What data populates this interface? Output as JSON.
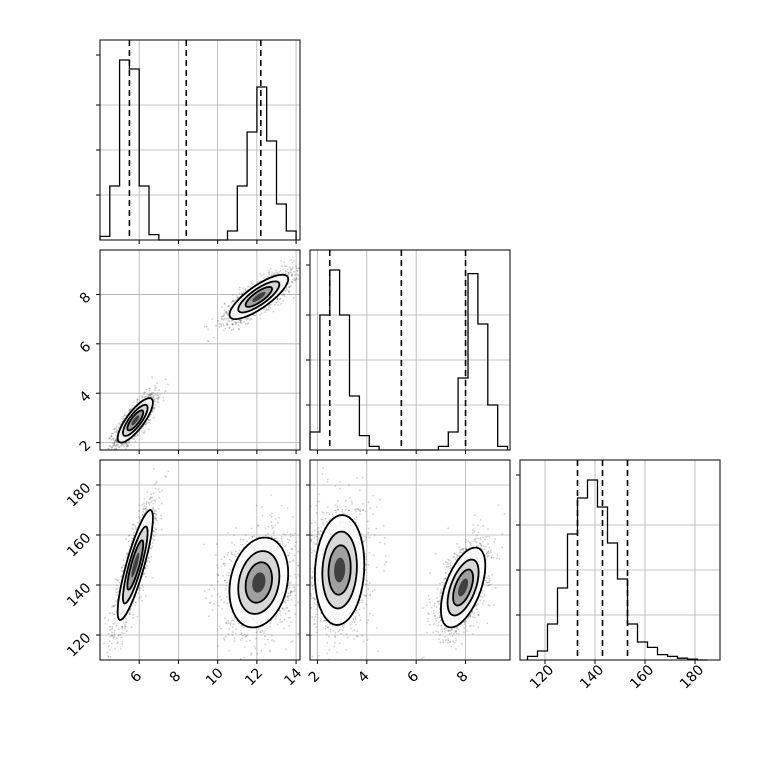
{
  "chart_data": {
    "type": "corner",
    "title": "",
    "colors": {
      "line": "#000000",
      "grid": "#b0b0b0",
      "frame": "#000000",
      "background": "#ffffff"
    },
    "grid": true,
    "parameters": [
      {
        "range": [
          4,
          14.2
        ],
        "tick_labels": [
          "6",
          "8",
          "10",
          "12",
          "14"
        ],
        "tick_values": [
          6,
          8,
          10,
          12,
          14
        ]
      },
      {
        "range": [
          1.7,
          9.8
        ],
        "tick_labels": [
          "2",
          "4",
          "6",
          "8"
        ],
        "tick_values": [
          2,
          4,
          6,
          8
        ]
      },
      {
        "range": [
          110,
          190
        ],
        "tick_labels": [
          "120",
          "140",
          "160",
          "180"
        ],
        "tick_values": [
          120,
          140,
          160,
          180
        ]
      }
    ],
    "histograms": [
      {
        "parameter": 0,
        "bin_edges": [
          4.0,
          4.5,
          5.0,
          5.5,
          6.0,
          6.5,
          7.0,
          7.5,
          8.0,
          8.5,
          9.0,
          9.5,
          10.0,
          10.5,
          11.0,
          11.5,
          12.0,
          12.5,
          13.0,
          13.5,
          14.0
        ],
        "counts": [
          0.02,
          0.3,
          1.0,
          0.95,
          0.3,
          0.03,
          0,
          0,
          0,
          0,
          0,
          0,
          0,
          0.05,
          0.3,
          0.6,
          0.85,
          0.55,
          0.2,
          0.05
        ],
        "quantiles": [
          5.5,
          8.4,
          12.2
        ]
      },
      {
        "parameter": 1,
        "bin_edges": [
          1.7,
          2.1,
          2.5,
          2.9,
          3.3,
          3.7,
          4.1,
          4.5,
          4.9,
          5.3,
          5.7,
          6.1,
          6.5,
          6.9,
          7.3,
          7.7,
          8.1,
          8.5,
          8.9,
          9.3,
          9.7
        ],
        "counts": [
          0.1,
          0.75,
          1.0,
          0.75,
          0.3,
          0.08,
          0.02,
          0,
          0,
          0,
          0,
          0,
          0,
          0.02,
          0.1,
          0.4,
          0.98,
          0.7,
          0.25,
          0.02
        ],
        "quantiles": [
          2.5,
          5.4,
          8.0
        ]
      },
      {
        "parameter": 2,
        "bin_edges": [
          113,
          117,
          121,
          125,
          129,
          133,
          137,
          141,
          145,
          149,
          153,
          157,
          161,
          165,
          169,
          173,
          177,
          181,
          185
        ],
        "counts": [
          0.02,
          0.05,
          0.2,
          0.4,
          0.7,
          0.9,
          1.0,
          0.85,
          0.65,
          0.45,
          0.2,
          0.1,
          0.07,
          0.03,
          0.02,
          0.01,
          0.005,
          0.0
        ],
        "quantiles": [
          133,
          143,
          153
        ]
      }
    ],
    "scatter_blobs": [
      {
        "x_param": 0,
        "y_param": 1,
        "clusters": [
          {
            "mean": [
              5.8,
              2.9
            ],
            "sd": [
              0.45,
              0.45
            ],
            "rho": 0.8,
            "weight": 0.5
          },
          {
            "mean": [
              12.1,
              7.9
            ],
            "sd": [
              0.75,
              0.45
            ],
            "rho": 0.8,
            "weight": 0.5
          }
        ]
      },
      {
        "x_param": 0,
        "y_param": 2,
        "clusters": [
          {
            "mean": [
              5.8,
              148
            ],
            "sd": [
              0.45,
              11
            ],
            "rho": 0.85,
            "weight": 0.5
          },
          {
            "mean": [
              12.1,
              141
            ],
            "sd": [
              0.75,
              9
            ],
            "rho": 0.2,
            "weight": 0.5
          }
        ]
      },
      {
        "x_param": 1,
        "y_param": 2,
        "clusters": [
          {
            "mean": [
              2.9,
              146
            ],
            "sd": [
              0.5,
              11
            ],
            "rho": 0.1,
            "weight": 0.5
          },
          {
            "mean": [
              7.9,
              139
            ],
            "sd": [
              0.45,
              8
            ],
            "rho": 0.55,
            "weight": 0.5
          }
        ]
      }
    ]
  }
}
